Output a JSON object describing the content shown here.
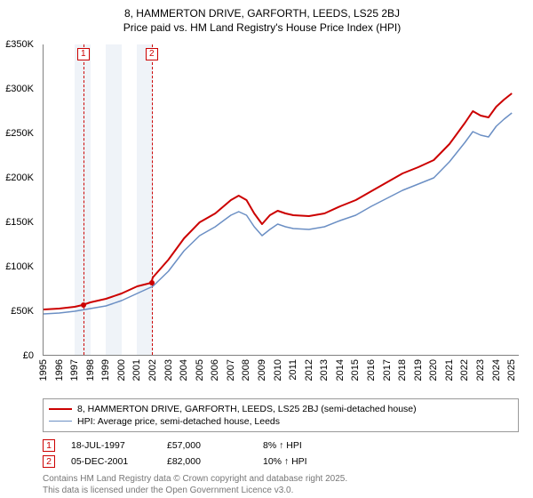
{
  "title_line1": "8, HAMMERTON DRIVE, GARFORTH, LEEDS, LS25 2BJ",
  "title_line2": "Price paid vs. HM Land Registry's House Price Index (HPI)",
  "chart": {
    "type": "line",
    "background_color": "#ffffff",
    "shade_color": "#e8eef5",
    "marker_color": "#cc0000",
    "xlim": [
      1995,
      2025.5
    ],
    "ylim": [
      0,
      350000
    ],
    "y_ticks": [
      0,
      50000,
      100000,
      150000,
      200000,
      250000,
      300000,
      350000
    ],
    "y_tick_labels": [
      "£0",
      "£50K",
      "£100K",
      "£150K",
      "£200K",
      "£250K",
      "£300K",
      "£350K"
    ],
    "x_ticks": [
      1995,
      1996,
      1997,
      1998,
      1999,
      2000,
      2001,
      2002,
      2003,
      2004,
      2005,
      2006,
      2007,
      2008,
      2009,
      2010,
      2011,
      2012,
      2013,
      2014,
      2015,
      2016,
      2017,
      2018,
      2019,
      2020,
      2021,
      2022,
      2023,
      2024,
      2025
    ],
    "shaded_years": [
      1997,
      1998,
      1999,
      2000,
      2001
    ],
    "series": [
      {
        "name": "property",
        "label": "8, HAMMERTON DRIVE, GARFORTH, LEEDS, LS25 2BJ (semi-detached house)",
        "color": "#cc0000",
        "line_width": 2,
        "data": [
          [
            1995,
            52000
          ],
          [
            1996,
            53000
          ],
          [
            1997,
            55000
          ],
          [
            1997.5,
            57000
          ],
          [
            1998,
            60000
          ],
          [
            1999,
            64000
          ],
          [
            2000,
            70000
          ],
          [
            2001,
            78000
          ],
          [
            2001.9,
            82000
          ],
          [
            2002,
            88000
          ],
          [
            2003,
            108000
          ],
          [
            2004,
            132000
          ],
          [
            2005,
            150000
          ],
          [
            2006,
            160000
          ],
          [
            2007,
            175000
          ],
          [
            2007.5,
            180000
          ],
          [
            2008,
            175000
          ],
          [
            2008.5,
            160000
          ],
          [
            2009,
            148000
          ],
          [
            2009.5,
            158000
          ],
          [
            2010,
            163000
          ],
          [
            2010.5,
            160000
          ],
          [
            2011,
            158000
          ],
          [
            2012,
            157000
          ],
          [
            2013,
            160000
          ],
          [
            2014,
            168000
          ],
          [
            2015,
            175000
          ],
          [
            2016,
            185000
          ],
          [
            2017,
            195000
          ],
          [
            2018,
            205000
          ],
          [
            2019,
            212000
          ],
          [
            2020,
            220000
          ],
          [
            2021,
            238000
          ],
          [
            2022,
            262000
          ],
          [
            2022.5,
            275000
          ],
          [
            2023,
            270000
          ],
          [
            2023.5,
            268000
          ],
          [
            2024,
            280000
          ],
          [
            2024.5,
            288000
          ],
          [
            2025,
            295000
          ]
        ]
      },
      {
        "name": "hpi",
        "label": "HPI: Average price, semi-detached house, Leeds",
        "color": "#6b8fc4",
        "line_width": 1.5,
        "data": [
          [
            1995,
            47000
          ],
          [
            1996,
            48000
          ],
          [
            1997,
            50000
          ],
          [
            1998,
            53000
          ],
          [
            1999,
            56000
          ],
          [
            2000,
            62000
          ],
          [
            2001,
            70000
          ],
          [
            2002,
            78000
          ],
          [
            2003,
            95000
          ],
          [
            2004,
            118000
          ],
          [
            2005,
            135000
          ],
          [
            2006,
            145000
          ],
          [
            2007,
            158000
          ],
          [
            2007.5,
            162000
          ],
          [
            2008,
            158000
          ],
          [
            2008.5,
            145000
          ],
          [
            2009,
            135000
          ],
          [
            2009.5,
            142000
          ],
          [
            2010,
            148000
          ],
          [
            2010.5,
            145000
          ],
          [
            2011,
            143000
          ],
          [
            2012,
            142000
          ],
          [
            2013,
            145000
          ],
          [
            2014,
            152000
          ],
          [
            2015,
            158000
          ],
          [
            2016,
            168000
          ],
          [
            2017,
            177000
          ],
          [
            2018,
            186000
          ],
          [
            2019,
            193000
          ],
          [
            2020,
            200000
          ],
          [
            2021,
            218000
          ],
          [
            2022,
            240000
          ],
          [
            2022.5,
            252000
          ],
          [
            2023,
            248000
          ],
          [
            2023.5,
            246000
          ],
          [
            2024,
            258000
          ],
          [
            2024.5,
            266000
          ],
          [
            2025,
            273000
          ]
        ]
      }
    ],
    "sale_points": [
      {
        "id": "1",
        "x": 1997.55,
        "y": 57000
      },
      {
        "id": "2",
        "x": 2001.93,
        "y": 82000
      }
    ]
  },
  "legend": {
    "rows": [
      {
        "color": "#cc0000",
        "width": 2,
        "label": "8, HAMMERTON DRIVE, GARFORTH, LEEDS, LS25 2BJ (semi-detached house)"
      },
      {
        "color": "#6b8fc4",
        "width": 1.5,
        "label": "HPI: Average price, semi-detached house, Leeds"
      }
    ]
  },
  "sales": [
    {
      "marker": "1",
      "date": "18-JUL-1997",
      "price": "£57,000",
      "delta": "8% ↑ HPI"
    },
    {
      "marker": "2",
      "date": "05-DEC-2001",
      "price": "£82,000",
      "delta": "10% ↑ HPI"
    }
  ],
  "footnote_line1": "Contains HM Land Registry data © Crown copyright and database right 2025.",
  "footnote_line2": "This data is licensed under the Open Government Licence v3.0."
}
